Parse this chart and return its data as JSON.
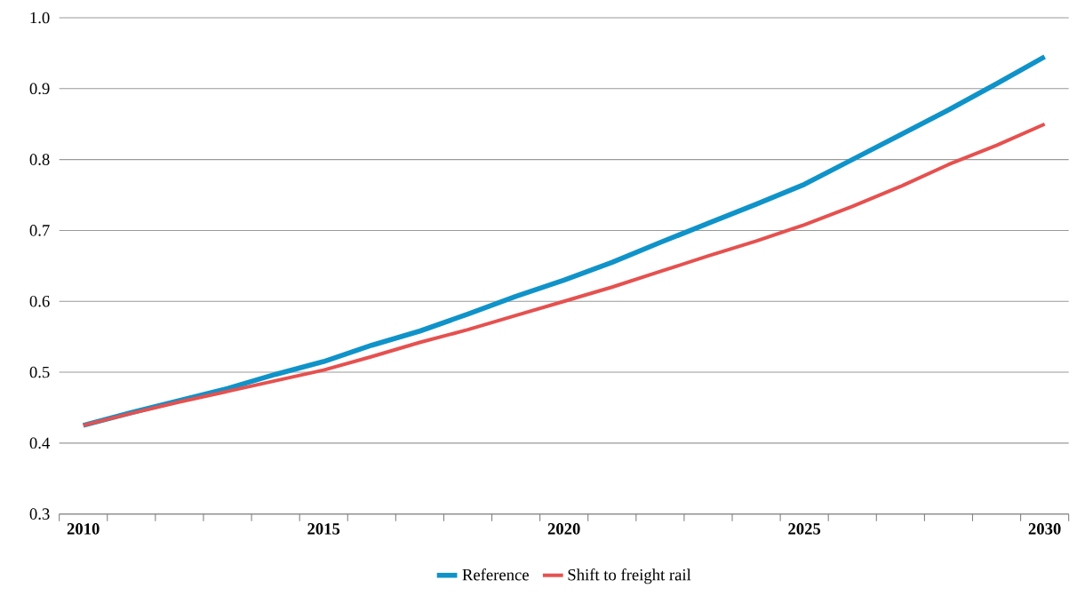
{
  "chart_data": {
    "type": "line",
    "categories": [
      "2010",
      null,
      null,
      null,
      null,
      "2015",
      null,
      null,
      null,
      null,
      "2020",
      null,
      null,
      null,
      null,
      "2025",
      null,
      null,
      null,
      null,
      "2030"
    ],
    "series": [
      {
        "name": "Reference",
        "color": "#0f93c9",
        "values": [
          0.425,
          0.443,
          0.46,
          0.477,
          0.497,
          0.515,
          0.538,
          0.558,
          0.582,
          0.607,
          0.63,
          0.655,
          0.683,
          0.71,
          0.737,
          0.765,
          0.8,
          0.835,
          0.87,
          0.907,
          0.945
        ]
      },
      {
        "name": "Shift to freight rail",
        "color": "#e5514f",
        "values": [
          0.425,
          0.442,
          0.458,
          0.473,
          0.488,
          0.503,
          0.522,
          0.542,
          0.56,
          0.58,
          0.6,
          0.62,
          0.642,
          0.664,
          0.685,
          0.708,
          0.734,
          0.762,
          0.793,
          0.82,
          0.85
        ]
      }
    ],
    "ylim": [
      0.3,
      1.0
    ],
    "yticks": [
      0.3,
      0.4,
      0.5,
      0.6,
      0.7,
      0.8,
      0.9,
      {
        "value": 1.0,
        "label": "1.0"
      }
    ],
    "grid": "y",
    "legend": "bottom",
    "marker": "none",
    "line_style": "solid"
  }
}
